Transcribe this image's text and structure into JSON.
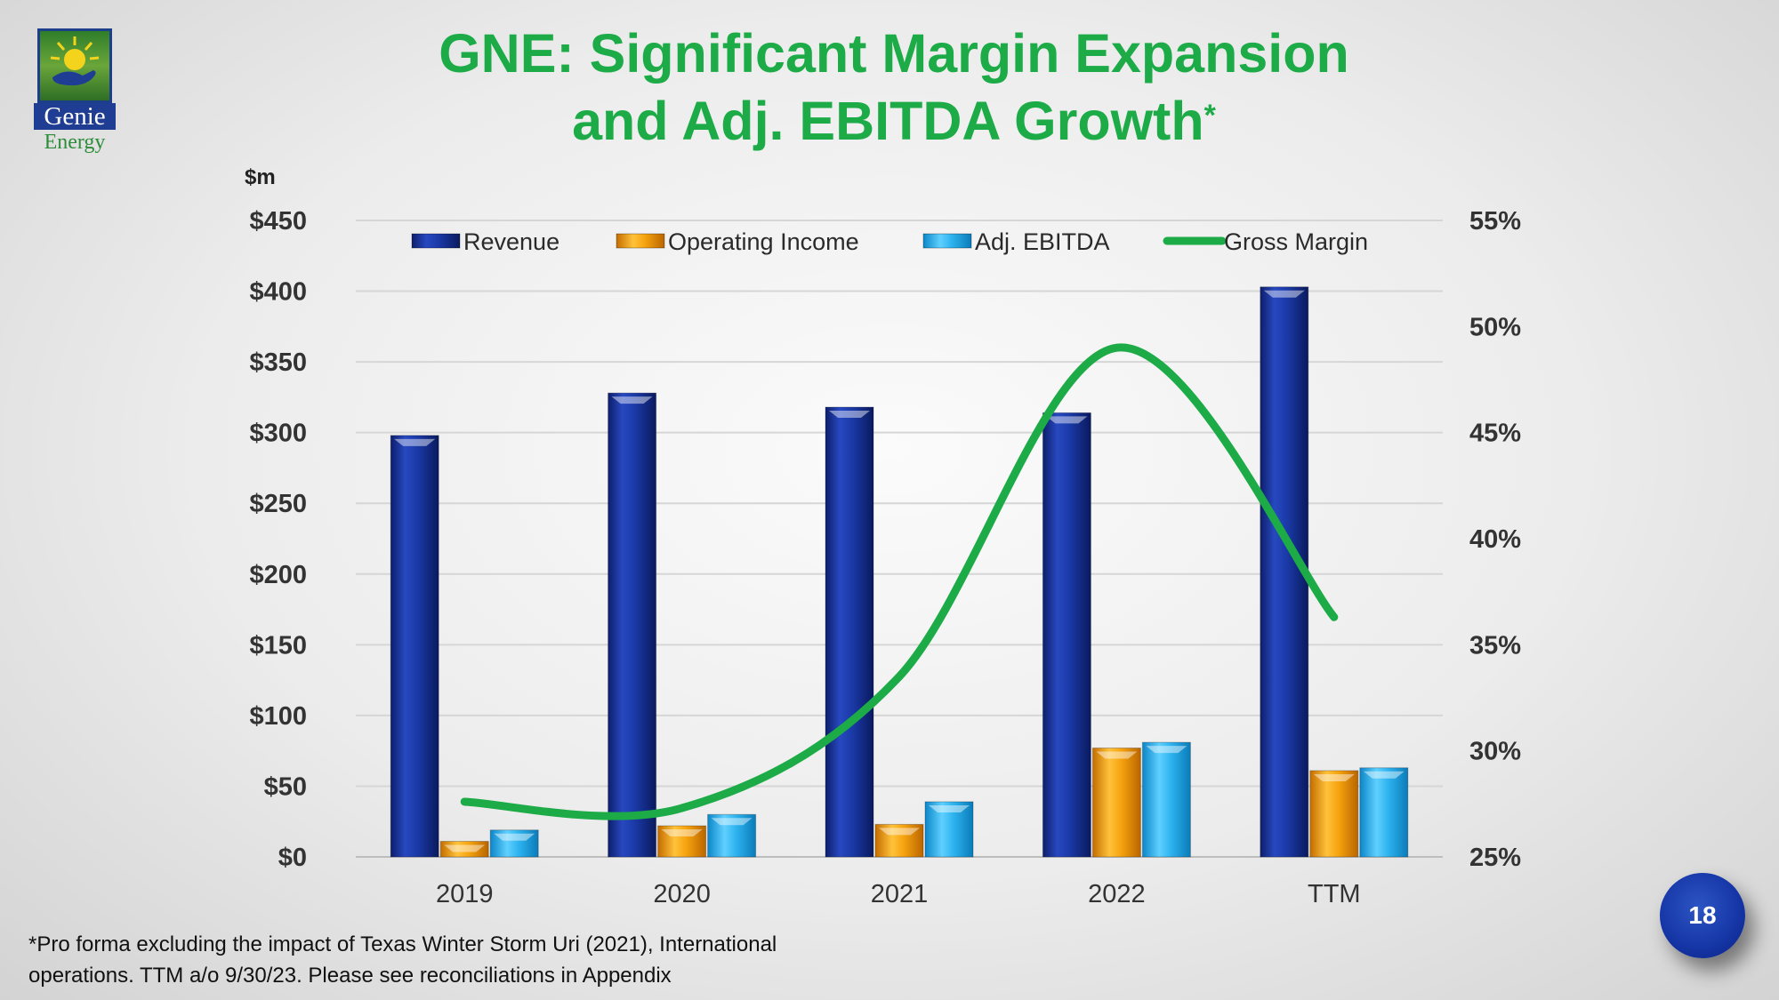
{
  "logo": {
    "name": "Genie",
    "sub": "Energy"
  },
  "slide": {
    "title_line1": "GNE: Significant Margin Expansion",
    "title_line2": "and Adj. EBITDA Growth",
    "title_mark": "*",
    "unit": "$m",
    "footnote_line1": "*Pro forma excluding the impact of Texas Winter Storm Uri (2021), International",
    "footnote_line2": "operations. TTM a/o 9/30/23.  Please see reconciliations in Appendix",
    "page_number": "18"
  },
  "colors": {
    "revenue": "#1a3a9e",
    "operating_income": "#f5a20e",
    "adj_ebitda": "#2cb2ee",
    "gross_margin": "#1cab47"
  },
  "chart_data": {
    "type": "bar",
    "categories": [
      "2019",
      "2020",
      "2021",
      "2022",
      "TTM"
    ],
    "series": [
      {
        "name": "Revenue",
        "axis": "left",
        "values": [
          298,
          328,
          318,
          314,
          403
        ]
      },
      {
        "name": "Operating Income",
        "axis": "left",
        "values": [
          11,
          22,
          23,
          77,
          61
        ]
      },
      {
        "name": "Adj. EBITDA",
        "axis": "left",
        "values": [
          19,
          30,
          39,
          81,
          63
        ]
      },
      {
        "name": "Gross Margin",
        "axis": "right",
        "type": "line",
        "values": [
          27.6,
          27.3,
          33.5,
          49.0,
          36.3
        ]
      }
    ],
    "left_axis": {
      "range": [
        0,
        450
      ],
      "ticks": [
        "$0",
        "$50",
        "$100",
        "$150",
        "$200",
        "$250",
        "$300",
        "$350",
        "$400",
        "$450"
      ],
      "values": [
        0,
        50,
        100,
        150,
        200,
        250,
        300,
        350,
        400,
        450
      ]
    },
    "right_axis": {
      "range": [
        25,
        55
      ],
      "ticks": [
        "25%",
        "30%",
        "35%",
        "40%",
        "45%",
        "50%",
        "55%"
      ],
      "values": [
        25,
        30,
        35,
        40,
        45,
        50,
        55
      ]
    },
    "legend": [
      "Revenue",
      "Operating Income",
      "Adj. EBITDA",
      "Gross Margin"
    ],
    "legend_position": "top",
    "grid": true
  }
}
